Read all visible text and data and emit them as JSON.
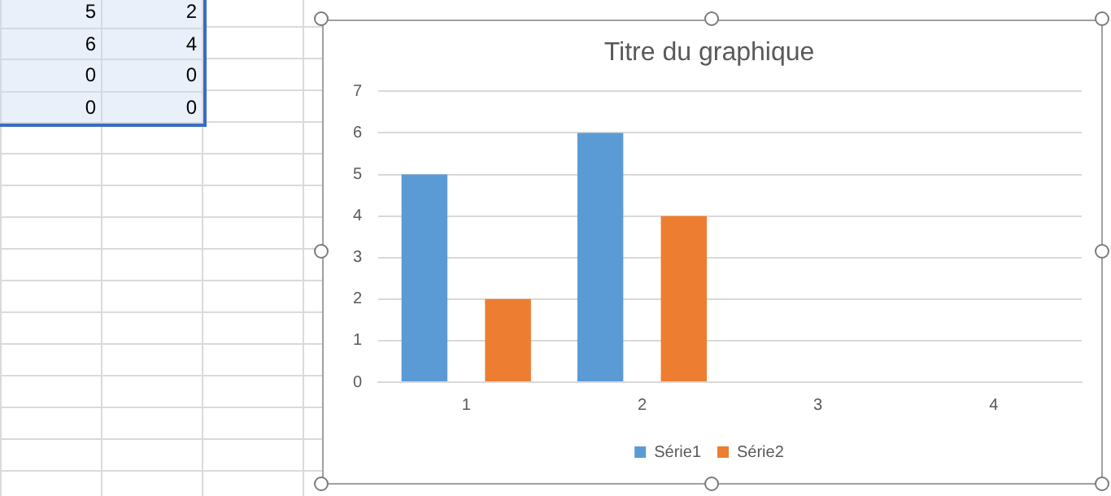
{
  "chart_data": [
    {
      "type": "bar",
      "title": "Titre du graphique",
      "categories": [
        "1",
        "2",
        "3",
        "4"
      ],
      "series": [
        {
          "name": "Série1",
          "color": "#5b9bd5",
          "values": [
            5,
            6,
            0,
            0
          ]
        },
        {
          "name": "Série2",
          "color": "#ed7d31",
          "values": [
            2,
            4,
            0,
            0
          ]
        }
      ],
      "ylim": [
        0,
        7
      ],
      "yticks": [
        0,
        1,
        2,
        3,
        4,
        5,
        6,
        7
      ],
      "grid": "y",
      "legend": "bottom"
    },
    {
      "type": "other",
      "annotations": [
        "5",
        "2",
        "6",
        "4",
        "0",
        "0",
        "0",
        "0"
      ]
    }
  ]
}
